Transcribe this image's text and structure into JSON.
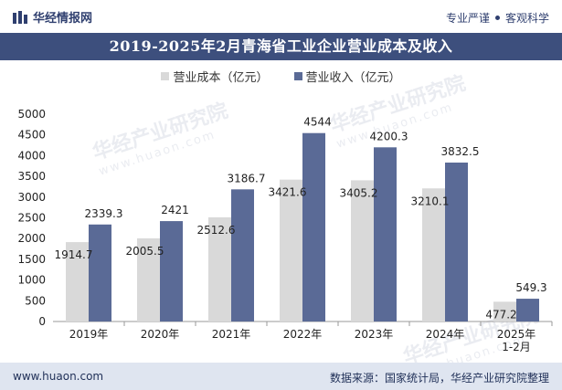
{
  "header": {
    "brand": "华经情报网",
    "tagline_left": "专业严谨",
    "tagline_right": "客观科学"
  },
  "watermark": {
    "text": "华经产业研究院",
    "url": "www.huaon.com"
  },
  "footer": {
    "site": "www.huaon.com",
    "source": "数据来源：国家统计局，华经产业研究院整理"
  },
  "colors": {
    "cost": "#d9d9d9",
    "revenue": "#5a6a96",
    "title_band": "#3d4f7d",
    "footer_band": "#dfe5f0"
  },
  "chart_data": {
    "type": "bar",
    "title": "2019-2025年2月青海省工业企业营业成本及收入",
    "categories": [
      "2019年",
      "2020年",
      "2021年",
      "2022年",
      "2023年",
      "2024年",
      "2025年\n1-2月"
    ],
    "series": [
      {
        "name": "营业成本（亿元）",
        "values": [
          1914.7,
          2005.5,
          2512.6,
          3421.6,
          3405.2,
          3210.1,
          477.2
        ]
      },
      {
        "name": "营业收入（亿元）",
        "values": [
          2339.3,
          2421,
          3186.7,
          4544,
          4200.3,
          3832.5,
          549.3
        ]
      }
    ],
    "xlabel": "",
    "ylabel": "",
    "ylim": [
      0,
      5000
    ],
    "yticks": [
      0,
      500,
      1000,
      1500,
      2000,
      2500,
      3000,
      3500,
      4000,
      4500,
      5000
    ],
    "grid": false,
    "legend": "top-center"
  }
}
